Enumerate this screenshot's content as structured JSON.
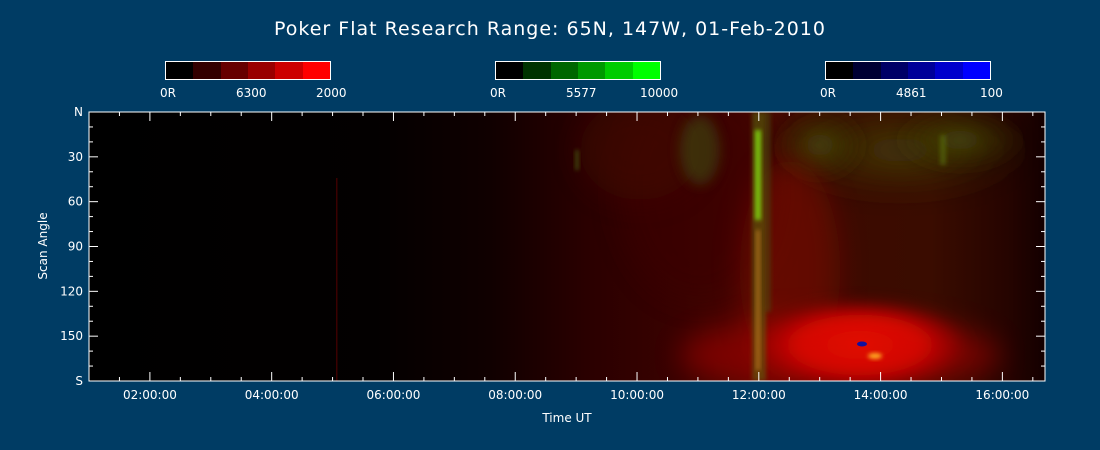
{
  "chart_data": {
    "type": "heatmap",
    "title": "Poker Flat Research Range: 65N, 147W, 01-Feb-2010",
    "xlabel": "Time UT",
    "ylabel": "Scan Angle",
    "x_ticks": [
      "02:00:00",
      "04:00:00",
      "06:00:00",
      "08:00:00",
      "10:00:00",
      "12:00:00",
      "14:00:00",
      "16:00:00"
    ],
    "x_tick_hours": [
      2,
      4,
      6,
      8,
      10,
      12,
      14,
      16
    ],
    "xlim_hours": [
      1.0,
      16.7
    ],
    "y_ticks": [
      "N",
      "30",
      "60",
      "90",
      "120",
      "150",
      "S"
    ],
    "y_tick_values": [
      0,
      30,
      60,
      90,
      120,
      150,
      180
    ],
    "ylim": [
      0,
      180
    ],
    "colorbars": [
      {
        "min_label": "0R",
        "name": "6300",
        "max_label": "2000",
        "colors": [
          "#000000",
          "#330000",
          "#660000",
          "#990000",
          "#cc0000",
          "#ff0000"
        ]
      },
      {
        "min_label": "0R",
        "name": "5577",
        "max_label": "10000",
        "colors": [
          "#000000",
          "#003300",
          "#006600",
          "#009900",
          "#00cc00",
          "#00ff00"
        ]
      },
      {
        "min_label": "0R",
        "name": "4861",
        "max_label": "100",
        "colors": [
          "#000000",
          "#000033",
          "#000066",
          "#000099",
          "#0000cc",
          "#0000ff"
        ]
      }
    ]
  }
}
